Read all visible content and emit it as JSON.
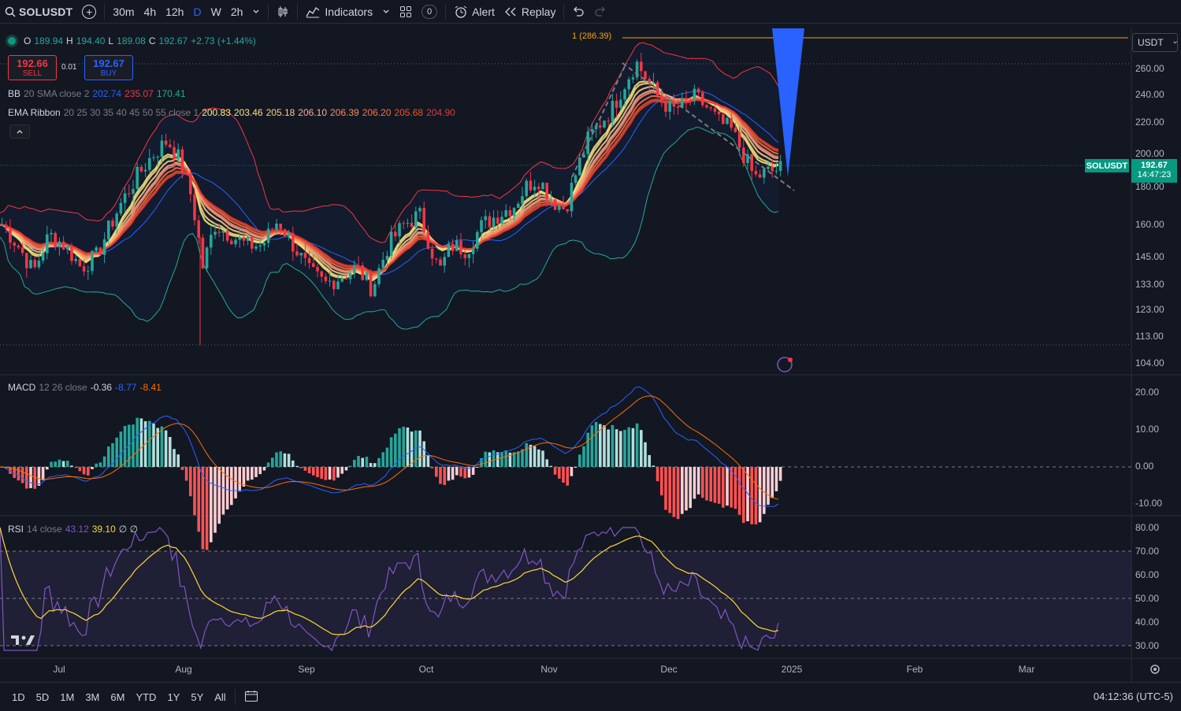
{
  "toolbar": {
    "symbol": "SOLUSDT",
    "intervals": [
      "30m",
      "4h",
      "12h",
      "D",
      "W",
      "2h"
    ],
    "active_interval": "D",
    "indicators_label": "Indicators",
    "layouts_count": "0",
    "alert_label": "Alert",
    "replay_label": "Replay"
  },
  "legend": {
    "ohlc": {
      "o_label": "O",
      "o": "189.94",
      "h_label": "H",
      "h": "194.40",
      "l_label": "L",
      "l": "189.08",
      "c_label": "C",
      "c": "192.67",
      "change": "+2.73 (+1.44%)"
    },
    "sell": {
      "price": "192.66",
      "label": "SELL"
    },
    "buy": {
      "price": "192.67",
      "label": "BUY"
    },
    "spread": "0.01",
    "bb": {
      "name": "BB",
      "params": "20 SMA close 2",
      "basis": "202.74",
      "upper": "235.07",
      "lower": "170.41"
    },
    "ema_ribbon": {
      "name": "EMA Ribbon",
      "params": "20 25 30 35 40 45 50 55 close 1",
      "values": [
        "200.83",
        "203.46",
        "205.18",
        "206.10",
        "206.39",
        "206.20",
        "205.68",
        "204.90"
      ]
    },
    "macd": {
      "name": "MACD",
      "params": "12 26 close",
      "hist": "-0.36",
      "macd": "-8.77",
      "signal": "-8.41"
    },
    "rsi": {
      "name": "RSI",
      "params": "14 close",
      "rsi": "43.12",
      "ma": "39.10",
      "extra": "∅ ∅"
    }
  },
  "target_label": "1 (286.39)",
  "currency_select": "USDT",
  "price_tag": {
    "symbol": "SOLUSDT",
    "price": "192.67",
    "countdown": "14:47:23"
  },
  "price_axis": [
    "260.00",
    "240.00",
    "220.00",
    "200.00",
    "180.00",
    "160.00",
    "145.00",
    "133.00",
    "123.00",
    "113.00",
    "104.00"
  ],
  "macd_axis": [
    "20.00",
    "10.00",
    "0.00",
    "-10.00"
  ],
  "rsi_axis": [
    "80.00",
    "70.00",
    "60.00",
    "50.00",
    "40.00",
    "30.00"
  ],
  "time_axis": [
    "Jul",
    "Aug",
    "Sep",
    "Oct",
    "Nov",
    "Dec",
    "2025",
    "Feb",
    "Mar"
  ],
  "bottom": {
    "ranges": [
      "1D",
      "5D",
      "1M",
      "3M",
      "6M",
      "YTD",
      "1Y",
      "5Y",
      "All"
    ],
    "clock": "04:12:36 (UTC-5)"
  },
  "colors": {
    "up": "#26a69a",
    "down": "#f23645",
    "bb_basis": "#2962ff",
    "bb_band": "#f23645",
    "bb_lower": "#22ab94",
    "macd": "#2962ff",
    "signal": "#ff6d00",
    "rsi": "#7e57c2",
    "rsi_ma": "#fdd835",
    "ribbon": [
      "#fff176",
      "#ffe082",
      "#ffcc80",
      "#ffab91",
      "#ff8a65",
      "#ff7043",
      "#f4511e",
      "#e53935"
    ]
  }
}
